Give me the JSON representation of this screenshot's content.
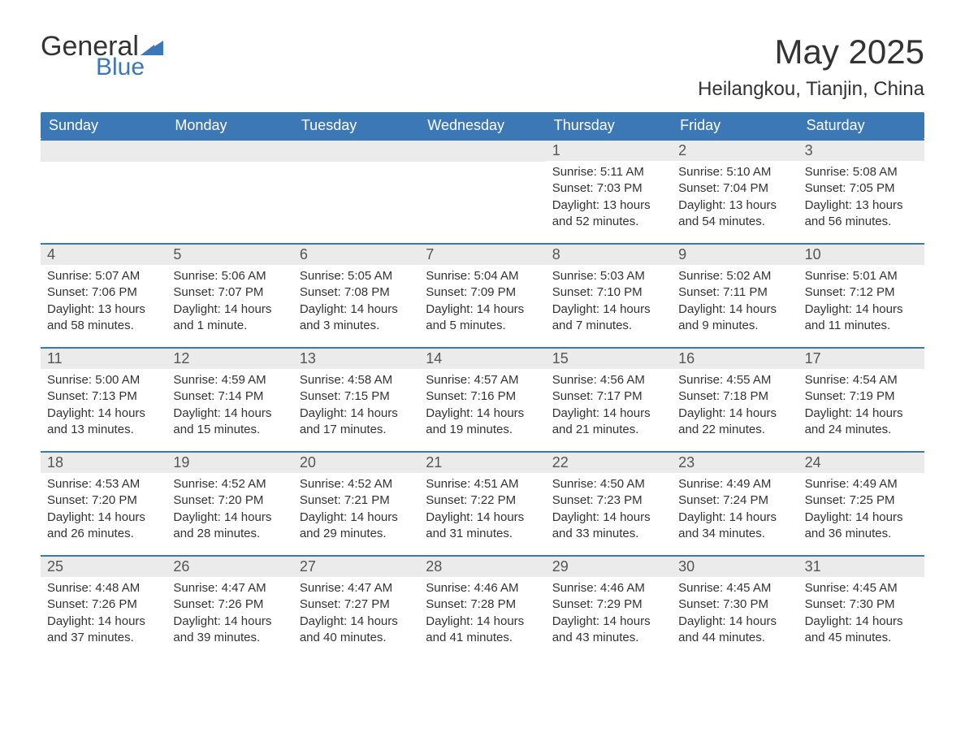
{
  "logo": {
    "text_general": "General",
    "text_blue": "Blue",
    "tri_color": "#3d78b6"
  },
  "title": "May 2025",
  "location": "Heilangkou, Tianjin, China",
  "colors": {
    "header_bg": "#3d78b6",
    "header_text": "#ffffff",
    "daynum_bg": "#ebebeb",
    "body_text": "#333333",
    "week_border": "#3d78b6"
  },
  "fonts": {
    "title_size": 42,
    "location_size": 24,
    "weekday_size": 18,
    "daynum_size": 18,
    "body_size": 15
  },
  "weekdays": [
    "Sunday",
    "Monday",
    "Tuesday",
    "Wednesday",
    "Thursday",
    "Friday",
    "Saturday"
  ],
  "weeks": [
    [
      {
        "empty": true
      },
      {
        "empty": true
      },
      {
        "empty": true
      },
      {
        "empty": true
      },
      {
        "day": "1",
        "sunrise": "Sunrise: 5:11 AM",
        "sunset": "Sunset: 7:03 PM",
        "daylight": "Daylight: 13 hours and 52 minutes."
      },
      {
        "day": "2",
        "sunrise": "Sunrise: 5:10 AM",
        "sunset": "Sunset: 7:04 PM",
        "daylight": "Daylight: 13 hours and 54 minutes."
      },
      {
        "day": "3",
        "sunrise": "Sunrise: 5:08 AM",
        "sunset": "Sunset: 7:05 PM",
        "daylight": "Daylight: 13 hours and 56 minutes."
      }
    ],
    [
      {
        "day": "4",
        "sunrise": "Sunrise: 5:07 AM",
        "sunset": "Sunset: 7:06 PM",
        "daylight": "Daylight: 13 hours and 58 minutes."
      },
      {
        "day": "5",
        "sunrise": "Sunrise: 5:06 AM",
        "sunset": "Sunset: 7:07 PM",
        "daylight": "Daylight: 14 hours and 1 minute."
      },
      {
        "day": "6",
        "sunrise": "Sunrise: 5:05 AM",
        "sunset": "Sunset: 7:08 PM",
        "daylight": "Daylight: 14 hours and 3 minutes."
      },
      {
        "day": "7",
        "sunrise": "Sunrise: 5:04 AM",
        "sunset": "Sunset: 7:09 PM",
        "daylight": "Daylight: 14 hours and 5 minutes."
      },
      {
        "day": "8",
        "sunrise": "Sunrise: 5:03 AM",
        "sunset": "Sunset: 7:10 PM",
        "daylight": "Daylight: 14 hours and 7 minutes."
      },
      {
        "day": "9",
        "sunrise": "Sunrise: 5:02 AM",
        "sunset": "Sunset: 7:11 PM",
        "daylight": "Daylight: 14 hours and 9 minutes."
      },
      {
        "day": "10",
        "sunrise": "Sunrise: 5:01 AM",
        "sunset": "Sunset: 7:12 PM",
        "daylight": "Daylight: 14 hours and 11 minutes."
      }
    ],
    [
      {
        "day": "11",
        "sunrise": "Sunrise: 5:00 AM",
        "sunset": "Sunset: 7:13 PM",
        "daylight": "Daylight: 14 hours and 13 minutes."
      },
      {
        "day": "12",
        "sunrise": "Sunrise: 4:59 AM",
        "sunset": "Sunset: 7:14 PM",
        "daylight": "Daylight: 14 hours and 15 minutes."
      },
      {
        "day": "13",
        "sunrise": "Sunrise: 4:58 AM",
        "sunset": "Sunset: 7:15 PM",
        "daylight": "Daylight: 14 hours and 17 minutes."
      },
      {
        "day": "14",
        "sunrise": "Sunrise: 4:57 AM",
        "sunset": "Sunset: 7:16 PM",
        "daylight": "Daylight: 14 hours and 19 minutes."
      },
      {
        "day": "15",
        "sunrise": "Sunrise: 4:56 AM",
        "sunset": "Sunset: 7:17 PM",
        "daylight": "Daylight: 14 hours and 21 minutes."
      },
      {
        "day": "16",
        "sunrise": "Sunrise: 4:55 AM",
        "sunset": "Sunset: 7:18 PM",
        "daylight": "Daylight: 14 hours and 22 minutes."
      },
      {
        "day": "17",
        "sunrise": "Sunrise: 4:54 AM",
        "sunset": "Sunset: 7:19 PM",
        "daylight": "Daylight: 14 hours and 24 minutes."
      }
    ],
    [
      {
        "day": "18",
        "sunrise": "Sunrise: 4:53 AM",
        "sunset": "Sunset: 7:20 PM",
        "daylight": "Daylight: 14 hours and 26 minutes."
      },
      {
        "day": "19",
        "sunrise": "Sunrise: 4:52 AM",
        "sunset": "Sunset: 7:20 PM",
        "daylight": "Daylight: 14 hours and 28 minutes."
      },
      {
        "day": "20",
        "sunrise": "Sunrise: 4:52 AM",
        "sunset": "Sunset: 7:21 PM",
        "daylight": "Daylight: 14 hours and 29 minutes."
      },
      {
        "day": "21",
        "sunrise": "Sunrise: 4:51 AM",
        "sunset": "Sunset: 7:22 PM",
        "daylight": "Daylight: 14 hours and 31 minutes."
      },
      {
        "day": "22",
        "sunrise": "Sunrise: 4:50 AM",
        "sunset": "Sunset: 7:23 PM",
        "daylight": "Daylight: 14 hours and 33 minutes."
      },
      {
        "day": "23",
        "sunrise": "Sunrise: 4:49 AM",
        "sunset": "Sunset: 7:24 PM",
        "daylight": "Daylight: 14 hours and 34 minutes."
      },
      {
        "day": "24",
        "sunrise": "Sunrise: 4:49 AM",
        "sunset": "Sunset: 7:25 PM",
        "daylight": "Daylight: 14 hours and 36 minutes."
      }
    ],
    [
      {
        "day": "25",
        "sunrise": "Sunrise: 4:48 AM",
        "sunset": "Sunset: 7:26 PM",
        "daylight": "Daylight: 14 hours and 37 minutes."
      },
      {
        "day": "26",
        "sunrise": "Sunrise: 4:47 AM",
        "sunset": "Sunset: 7:26 PM",
        "daylight": "Daylight: 14 hours and 39 minutes."
      },
      {
        "day": "27",
        "sunrise": "Sunrise: 4:47 AM",
        "sunset": "Sunset: 7:27 PM",
        "daylight": "Daylight: 14 hours and 40 minutes."
      },
      {
        "day": "28",
        "sunrise": "Sunrise: 4:46 AM",
        "sunset": "Sunset: 7:28 PM",
        "daylight": "Daylight: 14 hours and 41 minutes."
      },
      {
        "day": "29",
        "sunrise": "Sunrise: 4:46 AM",
        "sunset": "Sunset: 7:29 PM",
        "daylight": "Daylight: 14 hours and 43 minutes."
      },
      {
        "day": "30",
        "sunrise": "Sunrise: 4:45 AM",
        "sunset": "Sunset: 7:30 PM",
        "daylight": "Daylight: 14 hours and 44 minutes."
      },
      {
        "day": "31",
        "sunrise": "Sunrise: 4:45 AM",
        "sunset": "Sunset: 7:30 PM",
        "daylight": "Daylight: 14 hours and 45 minutes."
      }
    ]
  ]
}
